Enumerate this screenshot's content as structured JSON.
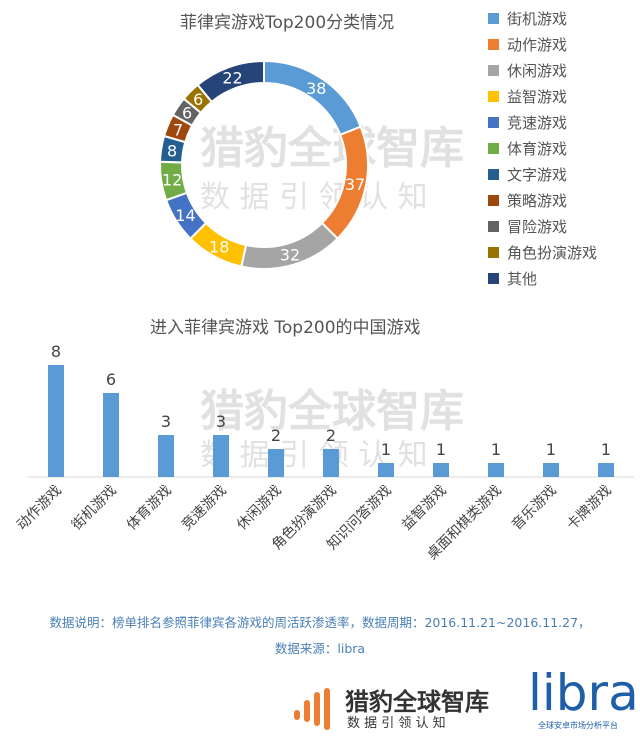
{
  "chart_data": [
    {
      "type": "pie",
      "title": "菲律宾游戏Top200分类情况",
      "donut": true,
      "slices": [
        {
          "label": "街机游戏",
          "value": 38,
          "color": "#5b9bd5"
        },
        {
          "label": "动作游戏",
          "value": 37,
          "color": "#ed7d31"
        },
        {
          "label": "休闲游戏",
          "value": 32,
          "color": "#a5a5a5"
        },
        {
          "label": "益智游戏",
          "value": 18,
          "color": "#ffc000"
        },
        {
          "label": "竞速游戏",
          "value": 14,
          "color": "#4472c4"
        },
        {
          "label": "体育游戏",
          "value": 12,
          "color": "#70ad47"
        },
        {
          "label": "文字游戏",
          "value": 8,
          "color": "#255e91"
        },
        {
          "label": "策略游戏",
          "value": 7,
          "color": "#9e480e"
        },
        {
          "label": "冒险游戏",
          "value": 6,
          "color": "#636363"
        },
        {
          "label": "角色扮演游戏",
          "value": 6,
          "color": "#997300"
        },
        {
          "label": "其他",
          "value": 22,
          "color": "#264478"
        }
      ],
      "legend": "right"
    },
    {
      "type": "bar",
      "title": "进入菲律宾游戏 Top200的中国游戏",
      "categories": [
        "动作游戏",
        "街机游戏",
        "体育游戏",
        "竞速游戏",
        "休闲游戏",
        "角色扮演游戏",
        "知识问答游戏",
        "益智游戏",
        "桌面和棋类游戏",
        "音乐游戏",
        "卡牌游戏"
      ],
      "values": [
        8,
        6,
        3,
        3,
        2,
        2,
        1,
        1,
        1,
        1,
        1
      ],
      "color": "#5b9bd5",
      "ylim": [
        0,
        8
      ]
    }
  ],
  "watermark": {
    "name": "猎豹全球智库",
    "slogan": "数 据 引 领 认 知"
  },
  "footer": {
    "note1": "数据说明：榜单排名参照菲律宾各游戏的周活跃渗透率，数据周期：2016.11.21~2016.11.27，",
    "note2": "数据来源：libra",
    "logo_name": "猎豹全球智库",
    "logo_slogan": "数 据 引 领 认 知",
    "libra": "libra",
    "libra_sub": "全球安卓市场分析平台"
  }
}
